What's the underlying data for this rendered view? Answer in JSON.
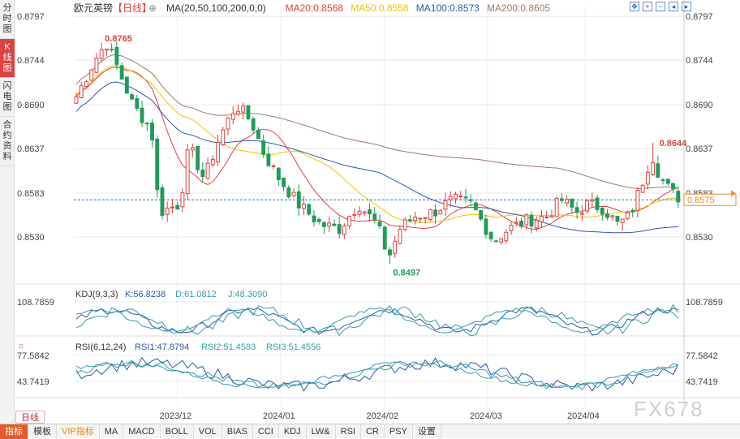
{
  "sidebar": {
    "items": [
      {
        "label": "分时图",
        "active": false
      },
      {
        "label": "K线图",
        "active": true
      },
      {
        "label": "闪电图",
        "active": false
      },
      {
        "label": "合约资料",
        "active": false
      }
    ]
  },
  "header": {
    "instrument": "欧元英镑",
    "period_tag": "【日线】",
    "indicators": [
      {
        "text": "MA(20,50,100,200,0,0)",
        "color": "#333333"
      },
      {
        "text": "MA20:0.8568",
        "color": "#e04040"
      },
      {
        "text": "MA50:0.8558",
        "color": "#f0c400"
      },
      {
        "text": "MA100:0.8573",
        "color": "#2a5aa8"
      },
      {
        "text": "MA200:0.8605",
        "color": "#a07868"
      }
    ]
  },
  "kdj_header": {
    "title": "KDJ(9,3,3)",
    "k": "K:56.8238",
    "d": "D:61.0812",
    "j": "J:48.3090",
    "k_color": "#2a5aa8",
    "d_color": "#3a9aa8",
    "j_color": "#3a9aa8"
  },
  "rsi_header": {
    "title": "RSI(6,12,24)",
    "r1": "RSI1:47.8794",
    "r2": "RSI2:51.4583",
    "r3": "RSI3:51.4556"
  },
  "period_button": "日线",
  "watermark": "FX678",
  "bottom_bar": [
    "指标",
    "模板",
    "VIP指标",
    "MA",
    "MACD",
    "BOLL",
    "VOL",
    "BIAS",
    "CCI",
    "KDJ",
    "LW&",
    "RSI",
    "CR",
    "PSY",
    "设置"
  ],
  "toolbar_icons": [
    "zoom-fit-icon",
    "zoom-in-icon",
    "zoom-out-icon",
    "scroll-left-icon",
    "scroll-right-icon"
  ],
  "colors": {
    "up": "#e04040",
    "down": "#1e9c5a",
    "ma20": "#e04040",
    "ma50": "#f0c400",
    "ma100": "#2a5aa8",
    "ma200": "#a07868",
    "grid": "#e8e8e8",
    "last_price_line": "#2a78c8",
    "last_price_bg": "#f08a2a"
  },
  "chart_data": {
    "type": "candlestick",
    "price_axis": {
      "ticks": [
        "0.8797",
        "0.8744",
        "0.8690",
        "0.8637",
        "0.8583",
        "0.8530"
      ],
      "ylim": [
        0.8475,
        0.8809
      ]
    },
    "time_axis": {
      "labels": [
        "2023/12",
        "2024/01",
        "2024/02",
        "2024/03",
        "2024/04"
      ]
    },
    "last_price": "0.8575",
    "annotations": {
      "high": "0.8765",
      "low": "0.8497",
      "recent_high": "0.8644"
    },
    "kdj_axis": {
      "ticks": [
        "108.7859"
      ]
    },
    "rsi_axis": {
      "ticks": [
        "77.5842",
        "43.7419"
      ]
    }
  }
}
